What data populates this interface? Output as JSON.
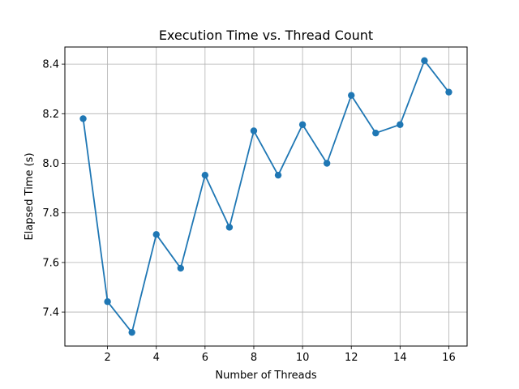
{
  "chart_data": {
    "type": "line",
    "title": "Execution Time vs. Thread Count",
    "xlabel": "Number of Threads",
    "ylabel": "Elapsed Time (s)",
    "x": [
      1,
      2,
      3,
      4,
      5,
      6,
      7,
      8,
      9,
      10,
      11,
      12,
      13,
      14,
      15,
      16
    ],
    "series": [
      {
        "values": [
          8.18,
          7.442,
          7.318,
          7.713,
          7.577,
          7.952,
          7.742,
          8.131,
          7.952,
          8.156,
          8.0,
          8.274,
          8.122,
          8.156,
          8.414,
          8.287
        ]
      }
    ],
    "xlim": [
      0.25,
      16.75
    ],
    "ylim": [
      7.263,
      8.469
    ],
    "xticks": [
      2,
      4,
      6,
      8,
      10,
      12,
      14,
      16
    ],
    "yticks": [
      7.4,
      7.6,
      7.8,
      8.0,
      8.2,
      8.4
    ],
    "ytick_labels": [
      "7.4",
      "7.6",
      "7.8",
      "8.0",
      "8.2",
      "8.4"
    ],
    "grid": true,
    "markers": "circle",
    "line_color": "#1f77b4",
    "grid_color": "#b0b0b0"
  }
}
